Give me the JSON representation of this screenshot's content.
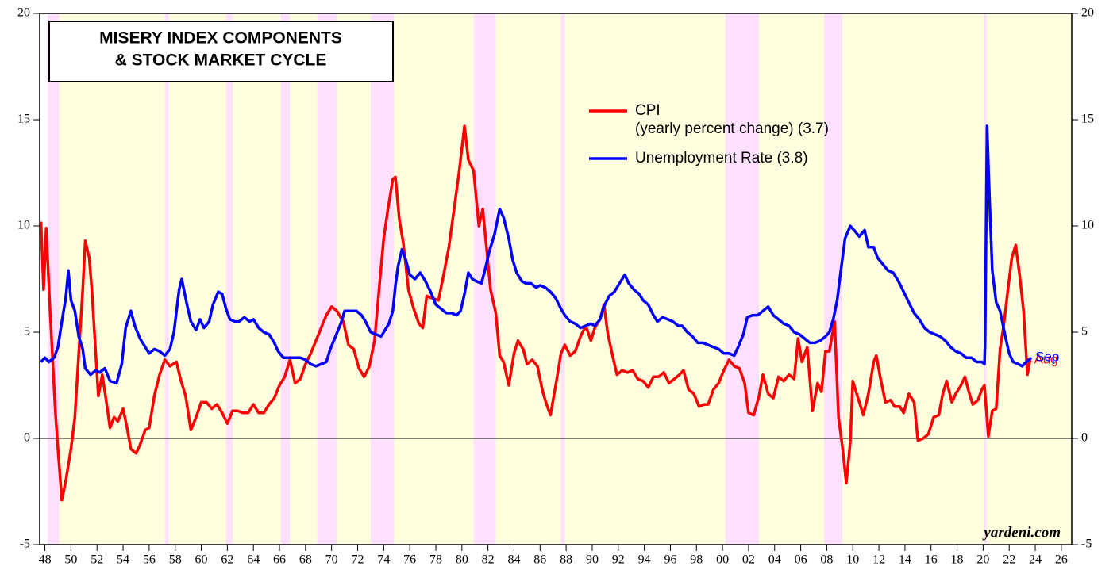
{
  "chart_data": {
    "type": "line",
    "title": [
      "MISERY INDEX COMPONENTS",
      "& STOCK MARKET CYCLE"
    ],
    "source": "yardeni.com",
    "xlim": [
      1947.6,
      2026.8
    ],
    "xticks": [
      {
        "value": 1948,
        "label": "48"
      },
      {
        "value": 1950,
        "label": "50"
      },
      {
        "value": 1952,
        "label": "52"
      },
      {
        "value": 1954,
        "label": "54"
      },
      {
        "value": 1956,
        "label": "56"
      },
      {
        "value": 1958,
        "label": "58"
      },
      {
        "value": 1960,
        "label": "60"
      },
      {
        "value": 1962,
        "label": "62"
      },
      {
        "value": 1964,
        "label": "64"
      },
      {
        "value": 1966,
        "label": "66"
      },
      {
        "value": 1968,
        "label": "68"
      },
      {
        "value": 1970,
        "label": "70"
      },
      {
        "value": 1972,
        "label": "72"
      },
      {
        "value": 1974,
        "label": "74"
      },
      {
        "value": 1976,
        "label": "76"
      },
      {
        "value": 1978,
        "label": "78"
      },
      {
        "value": 1980,
        "label": "80"
      },
      {
        "value": 1982,
        "label": "82"
      },
      {
        "value": 1984,
        "label": "84"
      },
      {
        "value": 1986,
        "label": "86"
      },
      {
        "value": 1988,
        "label": "88"
      },
      {
        "value": 1990,
        "label": "90"
      },
      {
        "value": 1992,
        "label": "92"
      },
      {
        "value": 1994,
        "label": "94"
      },
      {
        "value": 1996,
        "label": "96"
      },
      {
        "value": 1998,
        "label": "98"
      },
      {
        "value": 2000,
        "label": "00"
      },
      {
        "value": 2002,
        "label": "02"
      },
      {
        "value": 2004,
        "label": "04"
      },
      {
        "value": 2006,
        "label": "06"
      },
      {
        "value": 2008,
        "label": "08"
      },
      {
        "value": 2010,
        "label": "10"
      },
      {
        "value": 2012,
        "label": "12"
      },
      {
        "value": 2014,
        "label": "14"
      },
      {
        "value": 2016,
        "label": "16"
      },
      {
        "value": 2018,
        "label": "18"
      },
      {
        "value": 2020,
        "label": "20"
      },
      {
        "value": 2022,
        "label": "22"
      },
      {
        "value": 2024,
        "label": "24"
      },
      {
        "value": 2026,
        "label": "26"
      }
    ],
    "ylim": [
      -5,
      20
    ],
    "yticks": [
      -5,
      0,
      5,
      10,
      15,
      20
    ],
    "y2lim": [
      -5,
      20
    ],
    "y2ticks": [
      -5,
      0,
      5,
      10,
      15,
      20
    ],
    "bull_color": "#ffffe0",
    "bear_color": "#ffe0ff",
    "bull_start": 1948.2,
    "bear_markets": [
      [
        1948.2,
        1949.1
      ],
      [
        1957.2,
        1957.5
      ],
      [
        1961.9,
        1962.4
      ],
      [
        1966.1,
        1966.8
      ],
      [
        1968.9,
        1970.4
      ],
      [
        1973.0,
        1974.8
      ],
      [
        1980.9,
        1982.6
      ],
      [
        1987.6,
        1987.9
      ],
      [
        2000.2,
        2002.8
      ],
      [
        2007.8,
        2009.2
      ],
      [
        2020.1,
        2020.25
      ]
    ],
    "series": [
      {
        "name": "CPI",
        "label_note": "(yearly percent change) (3.7)",
        "end_label": "Aug",
        "color": "#ff0000",
        "x": [
          1947.7,
          1947.9,
          1948.1,
          1948.4,
          1948.8,
          1949.0,
          1949.3,
          1949.6,
          1950.0,
          1950.3,
          1950.6,
          1950.9,
          1951.1,
          1951.4,
          1951.6,
          1951.9,
          1952.1,
          1952.4,
          1952.7,
          1953.0,
          1953.3,
          1953.6,
          1954.0,
          1954.3,
          1954.6,
          1955.0,
          1955.3,
          1955.7,
          1956.0,
          1956.4,
          1956.8,
          1957.2,
          1957.6,
          1958.1,
          1958.4,
          1958.8,
          1959.2,
          1959.6,
          1960.0,
          1960.4,
          1960.8,
          1961.2,
          1961.6,
          1962.0,
          1962.4,
          1962.8,
          1963.2,
          1963.6,
          1964.0,
          1964.4,
          1964.8,
          1965.2,
          1965.6,
          1966.0,
          1966.4,
          1966.8,
          1967.2,
          1967.6,
          1968.0,
          1968.4,
          1968.8,
          1969.2,
          1969.6,
          1970.0,
          1970.4,
          1970.9,
          1971.3,
          1971.7,
          1972.1,
          1972.5,
          1972.9,
          1973.3,
          1973.7,
          1974.0,
          1974.3,
          1974.7,
          1974.9,
          1975.2,
          1975.5,
          1975.9,
          1976.3,
          1976.7,
          1977.0,
          1977.3,
          1977.7,
          1978.2,
          1978.6,
          1979.0,
          1979.4,
          1979.8,
          1980.2,
          1980.5,
          1980.9,
          1981.3,
          1981.6,
          1981.9,
          1982.2,
          1982.6,
          1982.9,
          1983.2,
          1983.6,
          1984.0,
          1984.3,
          1984.7,
          1985.0,
          1985.4,
          1985.8,
          1986.2,
          1986.5,
          1986.8,
          1987.2,
          1987.6,
          1987.9,
          1988.3,
          1988.7,
          1989.1,
          1989.5,
          1989.9,
          1990.2,
          1990.6,
          1990.9,
          1991.2,
          1991.6,
          1991.9,
          1992.3,
          1992.7,
          1993.1,
          1993.5,
          1993.9,
          1994.3,
          1994.7,
          1995.1,
          1995.5,
          1995.9,
          1996.3,
          1996.7,
          1997.0,
          1997.4,
          1997.8,
          1998.2,
          1998.6,
          1998.9,
          1999.3,
          1999.7,
          2000.1,
          2000.5,
          2000.9,
          2001.3,
          2001.7,
          2002.0,
          2002.4,
          2002.8,
          2003.1,
          2003.5,
          2003.9,
          2004.3,
          2004.7,
          2005.1,
          2005.5,
          2005.8,
          2006.1,
          2006.5,
          2006.9,
          2007.3,
          2007.6,
          2007.9,
          2008.2,
          2008.6,
          2008.9,
          2009.2,
          2009.5,
          2009.8,
          2010.0,
          2010.4,
          2010.8,
          2011.2,
          2011.6,
          2011.8,
          2012.1,
          2012.5,
          2012.9,
          2013.2,
          2013.6,
          2013.9,
          2014.3,
          2014.7,
          2015.0,
          2015.4,
          2015.8,
          2016.2,
          2016.6,
          2016.9,
          2017.2,
          2017.6,
          2017.9,
          2018.3,
          2018.6,
          2018.9,
          2019.2,
          2019.6,
          2019.9,
          2020.1,
          2020.4,
          2020.7,
          2021.0,
          2021.3,
          2021.6,
          2021.9,
          2022.2,
          2022.5,
          2022.8,
          2023.1,
          2023.4,
          2023.6
        ],
        "values": [
          10.2,
          7.0,
          9.9,
          6.0,
          1.3,
          -0.5,
          -2.9,
          -2.0,
          -0.5,
          1.0,
          4.0,
          7.0,
          9.3,
          8.5,
          7.0,
          4.0,
          2.0,
          3.0,
          1.8,
          0.5,
          1.0,
          0.8,
          1.4,
          0.5,
          -0.5,
          -0.7,
          -0.3,
          0.4,
          0.5,
          2.0,
          3.0,
          3.7,
          3.4,
          3.6,
          2.8,
          2.0,
          0.4,
          1.0,
          1.7,
          1.7,
          1.4,
          1.6,
          1.2,
          0.7,
          1.3,
          1.3,
          1.2,
          1.2,
          1.6,
          1.2,
          1.2,
          1.6,
          1.9,
          2.5,
          2.9,
          3.7,
          2.6,
          2.8,
          3.5,
          4.0,
          4.6,
          5.2,
          5.8,
          6.2,
          6.0,
          5.5,
          4.4,
          4.2,
          3.3,
          2.9,
          3.4,
          4.6,
          7.4,
          9.4,
          10.7,
          12.2,
          12.3,
          10.3,
          9.2,
          7.0,
          6.1,
          5.4,
          5.2,
          6.7,
          6.6,
          6.5,
          7.7,
          9.0,
          10.8,
          12.6,
          14.7,
          13.1,
          12.6,
          10.0,
          10.8,
          8.9,
          7.0,
          5.9,
          3.9,
          3.6,
          2.5,
          4.0,
          4.6,
          4.2,
          3.5,
          3.7,
          3.4,
          2.2,
          1.6,
          1.1,
          2.5,
          4.0,
          4.4,
          3.9,
          4.1,
          4.8,
          5.3,
          4.6,
          5.2,
          5.6,
          6.3,
          4.9,
          3.8,
          3.0,
          3.2,
          3.1,
          3.2,
          2.8,
          2.7,
          2.4,
          2.9,
          2.9,
          3.1,
          2.6,
          2.8,
          3.0,
          3.2,
          2.3,
          2.1,
          1.5,
          1.6,
          1.6,
          2.3,
          2.6,
          3.2,
          3.7,
          3.4,
          3.3,
          2.6,
          1.2,
          1.1,
          2.0,
          3.0,
          2.1,
          1.9,
          2.9,
          2.7,
          3.0,
          2.8,
          4.7,
          3.6,
          4.3,
          1.3,
          2.6,
          2.2,
          4.1,
          4.1,
          5.5,
          1.0,
          -0.4,
          -2.1,
          -0.2,
          2.7,
          1.9,
          1.1,
          2.1,
          3.6,
          3.9,
          2.9,
          1.7,
          1.8,
          1.5,
          1.5,
          1.2,
          2.1,
          1.7,
          -0.1,
          0.0,
          0.2,
          1.0,
          1.1,
          2.1,
          2.7,
          1.7,
          2.1,
          2.5,
          2.9,
          2.2,
          1.6,
          1.8,
          2.3,
          2.5,
          0.1,
          1.3,
          1.4,
          4.2,
          5.4,
          7.0,
          8.5,
          9.1,
          7.7,
          6.0,
          3.0,
          3.7
        ]
      },
      {
        "name": "Unemployment Rate (3.8)",
        "end_label": "Sep",
        "color": "#0000ff",
        "x": [
          1947.7,
          1948.0,
          1948.3,
          1948.7,
          1949.0,
          1949.3,
          1949.6,
          1949.8,
          1950.0,
          1950.3,
          1950.6,
          1950.9,
          1951.1,
          1951.5,
          1951.9,
          1952.2,
          1952.6,
          1953.0,
          1953.5,
          1953.9,
          1954.2,
          1954.6,
          1954.9,
          1955.3,
          1955.7,
          1956.0,
          1956.4,
          1956.8,
          1957.2,
          1957.6,
          1957.9,
          1958.3,
          1958.5,
          1958.9,
          1959.2,
          1959.6,
          1959.9,
          1960.2,
          1960.6,
          1960.9,
          1961.3,
          1961.6,
          1961.9,
          1962.2,
          1962.6,
          1962.9,
          1963.3,
          1963.7,
          1964.0,
          1964.4,
          1964.8,
          1965.2,
          1965.6,
          1965.9,
          1966.3,
          1966.8,
          1967.2,
          1967.6,
          1968.0,
          1968.4,
          1968.8,
          1969.2,
          1969.6,
          1969.9,
          1970.3,
          1970.7,
          1971.0,
          1971.4,
          1971.9,
          1972.3,
          1972.6,
          1973.0,
          1973.4,
          1973.8,
          1974.1,
          1974.4,
          1974.7,
          1974.9,
          1975.1,
          1975.4,
          1975.7,
          1976.0,
          1976.4,
          1976.8,
          1977.2,
          1977.6,
          1978.0,
          1978.4,
          1978.8,
          1979.2,
          1979.6,
          1979.9,
          1980.2,
          1980.5,
          1980.8,
          1981.1,
          1981.5,
          1981.8,
          1982.1,
          1982.5,
          1982.9,
          1983.2,
          1983.6,
          1983.9,
          1984.2,
          1984.6,
          1984.9,
          1985.3,
          1985.7,
          1986.0,
          1986.4,
          1986.8,
          1987.2,
          1987.6,
          1987.9,
          1988.3,
          1988.7,
          1989.1,
          1989.5,
          1989.9,
          1990.2,
          1990.6,
          1990.9,
          1991.3,
          1991.7,
          1992.1,
          1992.5,
          1992.8,
          1993.2,
          1993.6,
          1993.9,
          1994.3,
          1994.7,
          1995.0,
          1995.4,
          1995.8,
          1996.2,
          1996.6,
          1996.9,
          1997.3,
          1997.7,
          1998.1,
          1998.5,
          1998.9,
          1999.3,
          1999.7,
          2000.1,
          2000.5,
          2000.9,
          2001.2,
          2001.6,
          2001.9,
          2002.3,
          2002.7,
          2003.1,
          2003.5,
          2003.9,
          2004.3,
          2004.7,
          2005.1,
          2005.5,
          2005.9,
          2006.3,
          2006.7,
          2007.1,
          2007.5,
          2007.9,
          2008.2,
          2008.5,
          2008.8,
          2009.1,
          2009.4,
          2009.8,
          2010.1,
          2010.5,
          2010.9,
          2011.2,
          2011.6,
          2011.9,
          2012.3,
          2012.7,
          2013.1,
          2013.5,
          2013.9,
          2014.3,
          2014.7,
          2015.1,
          2015.5,
          2015.9,
          2016.3,
          2016.7,
          2017.1,
          2017.5,
          2017.9,
          2018.3,
          2018.7,
          2019.1,
          2019.5,
          2019.9,
          2020.1,
          2020.15,
          2020.3,
          2020.5,
          2020.7,
          2021.0,
          2021.3,
          2021.7,
          2022.0,
          2022.3,
          2022.7,
          2023.0,
          2023.3,
          2023.7
        ],
        "values": [
          3.6,
          3.8,
          3.6,
          3.8,
          4.3,
          5.5,
          6.6,
          7.9,
          6.5,
          6.0,
          4.8,
          4.2,
          3.3,
          3.0,
          3.2,
          3.1,
          3.3,
          2.7,
          2.6,
          3.5,
          5.2,
          6.0,
          5.3,
          4.7,
          4.3,
          4.0,
          4.2,
          4.1,
          3.9,
          4.2,
          5.0,
          7.0,
          7.5,
          6.3,
          5.5,
          5.1,
          5.6,
          5.2,
          5.5,
          6.3,
          6.9,
          6.8,
          6.1,
          5.6,
          5.5,
          5.5,
          5.7,
          5.5,
          5.6,
          5.2,
          5.0,
          4.9,
          4.5,
          4.1,
          3.8,
          3.8,
          3.8,
          3.8,
          3.7,
          3.5,
          3.4,
          3.5,
          3.6,
          4.2,
          4.8,
          5.4,
          6.0,
          6.0,
          6.0,
          5.8,
          5.5,
          5.0,
          4.9,
          4.8,
          5.1,
          5.4,
          6.0,
          7.2,
          8.1,
          8.9,
          8.4,
          7.7,
          7.5,
          7.8,
          7.4,
          6.9,
          6.3,
          6.1,
          5.9,
          5.9,
          5.8,
          6.0,
          6.8,
          7.8,
          7.5,
          7.4,
          7.3,
          8.0,
          8.8,
          9.6,
          10.8,
          10.4,
          9.4,
          8.4,
          7.8,
          7.4,
          7.3,
          7.3,
          7.1,
          7.2,
          7.1,
          6.9,
          6.6,
          6.1,
          5.8,
          5.5,
          5.4,
          5.2,
          5.3,
          5.4,
          5.3,
          5.6,
          6.2,
          6.7,
          6.9,
          7.3,
          7.7,
          7.3,
          7.0,
          6.8,
          6.5,
          6.3,
          5.8,
          5.5,
          5.7,
          5.6,
          5.5,
          5.3,
          5.3,
          5.0,
          4.8,
          4.5,
          4.5,
          4.4,
          4.3,
          4.2,
          4.0,
          4.0,
          3.9,
          4.3,
          4.9,
          5.7,
          5.8,
          5.8,
          6.0,
          6.2,
          5.8,
          5.6,
          5.4,
          5.3,
          5.0,
          4.9,
          4.7,
          4.5,
          4.5,
          4.6,
          4.8,
          5.0,
          5.6,
          6.5,
          8.0,
          9.4,
          10.0,
          9.8,
          9.5,
          9.8,
          9.0,
          9.0,
          8.5,
          8.2,
          7.9,
          7.8,
          7.4,
          6.9,
          6.4,
          5.9,
          5.6,
          5.2,
          5.0,
          4.9,
          4.8,
          4.6,
          4.3,
          4.1,
          4.0,
          3.8,
          3.8,
          3.6,
          3.6,
          3.5,
          4.4,
          14.7,
          11.1,
          7.9,
          6.4,
          6.0,
          4.8,
          4.0,
          3.6,
          3.5,
          3.4,
          3.6,
          3.8
        ]
      }
    ]
  }
}
